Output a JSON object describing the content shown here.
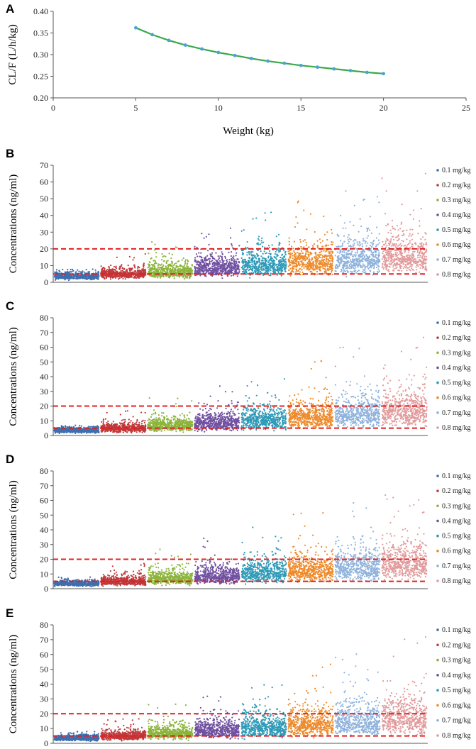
{
  "chart_data": [
    {
      "panel": "A",
      "type": "line",
      "title": "",
      "xlabel": "Weight (kg)",
      "ylabel": "CL/F (L/h/kg)",
      "xlim": [
        0,
        25
      ],
      "ylim": [
        0.2,
        0.4
      ],
      "xticks": [
        "0",
        "5",
        "10",
        "15",
        "20",
        "25"
      ],
      "yticks": [
        "0.20",
        "0.25",
        "0.30",
        "0.35",
        "0.40"
      ],
      "grid": false,
      "line_color": "#3aa84a",
      "marker_color": "#4aa3d8",
      "x": [
        5,
        6,
        7,
        8,
        9,
        10,
        11,
        12,
        13,
        14,
        15,
        16,
        17,
        18,
        19,
        20
      ],
      "y": [
        0.362,
        0.346,
        0.333,
        0.322,
        0.313,
        0.305,
        0.298,
        0.291,
        0.285,
        0.28,
        0.275,
        0.271,
        0.267,
        0.263,
        0.259,
        0.256
      ]
    },
    {
      "panel": "B",
      "type": "scatter",
      "xlabel": "",
      "ylabel": "Concentrations (ng/ml)",
      "ylim": [
        0,
        70
      ],
      "yticks": [
        "0",
        "10",
        "20",
        "30",
        "40",
        "50",
        "60",
        "70"
      ],
      "reference_lines": [
        5,
        20
      ],
      "reference_line_color": "#e02020",
      "legend_position": "right",
      "series": [
        {
          "name": "0.1 mg/kg",
          "color": "#3d6fb0",
          "median": 3.5,
          "spread": 1.2,
          "max": 8
        },
        {
          "name": "0.2 mg/kg",
          "color": "#c0393b",
          "median": 5.0,
          "spread": 2.0,
          "max": 17
        },
        {
          "name": "0.3 mg/kg",
          "color": "#8cb43c",
          "median": 6.5,
          "spread": 3.0,
          "max": 25
        },
        {
          "name": "0.4 mg/kg",
          "color": "#7050a0",
          "median": 9.0,
          "spread": 4.0,
          "max": 33
        },
        {
          "name": "0.5 mg/kg",
          "color": "#2f9ab8",
          "median": 10.5,
          "spread": 4.8,
          "max": 42
        },
        {
          "name": "0.6 mg/kg",
          "color": "#ee8a2a",
          "median": 12.5,
          "spread": 6.0,
          "max": 50
        },
        {
          "name": "0.7 mg/kg",
          "color": "#8eb2dc",
          "median": 14.0,
          "spread": 6.5,
          "max": 58
        },
        {
          "name": "0.8 mg/kg",
          "color": "#e19a9c",
          "median": 16.0,
          "spread": 7.5,
          "max": 66
        }
      ]
    },
    {
      "panel": "C",
      "type": "scatter",
      "xlabel": "",
      "ylabel": "Concentrations (ng/ml)",
      "ylim": [
        0,
        80
      ],
      "yticks": [
        "0",
        "10",
        "20",
        "30",
        "40",
        "50",
        "60",
        "70",
        "80"
      ],
      "reference_lines": [
        5,
        20
      ],
      "reference_line_color": "#e02020",
      "legend_position": "right",
      "series": [
        {
          "name": "0.1 mg/kg",
          "color": "#3d6fb0",
          "median": 3.5,
          "spread": 1.2,
          "max": 7
        },
        {
          "name": "0.2 mg/kg",
          "color": "#c0393b",
          "median": 5.0,
          "spread": 2.0,
          "max": 18
        },
        {
          "name": "0.3 mg/kg",
          "color": "#8cb43c",
          "median": 7.0,
          "spread": 3.0,
          "max": 26
        },
        {
          "name": "0.4 mg/kg",
          "color": "#7050a0",
          "median": 9.0,
          "spread": 4.0,
          "max": 34
        },
        {
          "name": "0.5 mg/kg",
          "color": "#2f9ab8",
          "median": 11.0,
          "spread": 5.0,
          "max": 43
        },
        {
          "name": "0.6 mg/kg",
          "color": "#ee8a2a",
          "median": 13.0,
          "spread": 6.0,
          "max": 52
        },
        {
          "name": "0.7 mg/kg",
          "color": "#8eb2dc",
          "median": 15.0,
          "spread": 7.0,
          "max": 60
        },
        {
          "name": "0.8 mg/kg",
          "color": "#e19a9c",
          "median": 17.0,
          "spread": 8.0,
          "max": 68
        }
      ]
    },
    {
      "panel": "D",
      "type": "scatter",
      "xlabel": "",
      "ylabel": "Concentrations (ng/ml)",
      "ylim": [
        0,
        80
      ],
      "yticks": [
        "0",
        "10",
        "20",
        "30",
        "40",
        "50",
        "60",
        "70",
        "80"
      ],
      "reference_lines": [
        5,
        20
      ],
      "reference_line_color": "#e02020",
      "legend_position": "right",
      "series": [
        {
          "name": "0.1 mg/kg",
          "color": "#3d6fb0",
          "median": 3.5,
          "spread": 1.2,
          "max": 8
        },
        {
          "name": "0.2 mg/kg",
          "color": "#c0393b",
          "median": 5.0,
          "spread": 2.0,
          "max": 18
        },
        {
          "name": "0.3 mg/kg",
          "color": "#8cb43c",
          "median": 7.0,
          "spread": 3.0,
          "max": 27
        },
        {
          "name": "0.4 mg/kg",
          "color": "#7050a0",
          "median": 9.0,
          "spread": 4.0,
          "max": 35
        },
        {
          "name": "0.5 mg/kg",
          "color": "#2f9ab8",
          "median": 11.0,
          "spread": 5.0,
          "max": 44
        },
        {
          "name": "0.6 mg/kg",
          "color": "#ee8a2a",
          "median": 13.0,
          "spread": 6.0,
          "max": 52
        },
        {
          "name": "0.7 mg/kg",
          "color": "#8eb2dc",
          "median": 15.0,
          "spread": 7.0,
          "max": 62
        },
        {
          "name": "0.8 mg/kg",
          "color": "#e19a9c",
          "median": 17.0,
          "spread": 8.0,
          "max": 71
        }
      ]
    },
    {
      "panel": "E",
      "type": "scatter",
      "xlabel": "",
      "ylabel": "Concentrations (ng/ml)",
      "ylim": [
        0,
        80
      ],
      "yticks": [
        "0",
        "10",
        "20",
        "30",
        "40",
        "50",
        "60",
        "70",
        "80"
      ],
      "reference_lines": [
        5,
        20
      ],
      "reference_line_color": "#e02020",
      "legend_position": "right",
      "series": [
        {
          "name": "0.1 mg/kg",
          "color": "#3d6fb0",
          "median": 3.5,
          "spread": 1.2,
          "max": 8
        },
        {
          "name": "0.2 mg/kg",
          "color": "#c0393b",
          "median": 5.0,
          "spread": 2.0,
          "max": 18
        },
        {
          "name": "0.3 mg/kg",
          "color": "#8cb43c",
          "median": 7.0,
          "spread": 3.0,
          "max": 27
        },
        {
          "name": "0.4 mg/kg",
          "color": "#7050a0",
          "median": 9.0,
          "spread": 4.0,
          "max": 36
        },
        {
          "name": "0.5 mg/kg",
          "color": "#2f9ab8",
          "median": 11.0,
          "spread": 5.0,
          "max": 45
        },
        {
          "name": "0.6 mg/kg",
          "color": "#ee8a2a",
          "median": 13.0,
          "spread": 6.0,
          "max": 54
        },
        {
          "name": "0.7 mg/kg",
          "color": "#8eb2dc",
          "median": 15.0,
          "spread": 7.0,
          "max": 63
        },
        {
          "name": "0.8 mg/kg",
          "color": "#e19a9c",
          "median": 17.0,
          "spread": 8.0,
          "max": 72
        }
      ]
    }
  ]
}
